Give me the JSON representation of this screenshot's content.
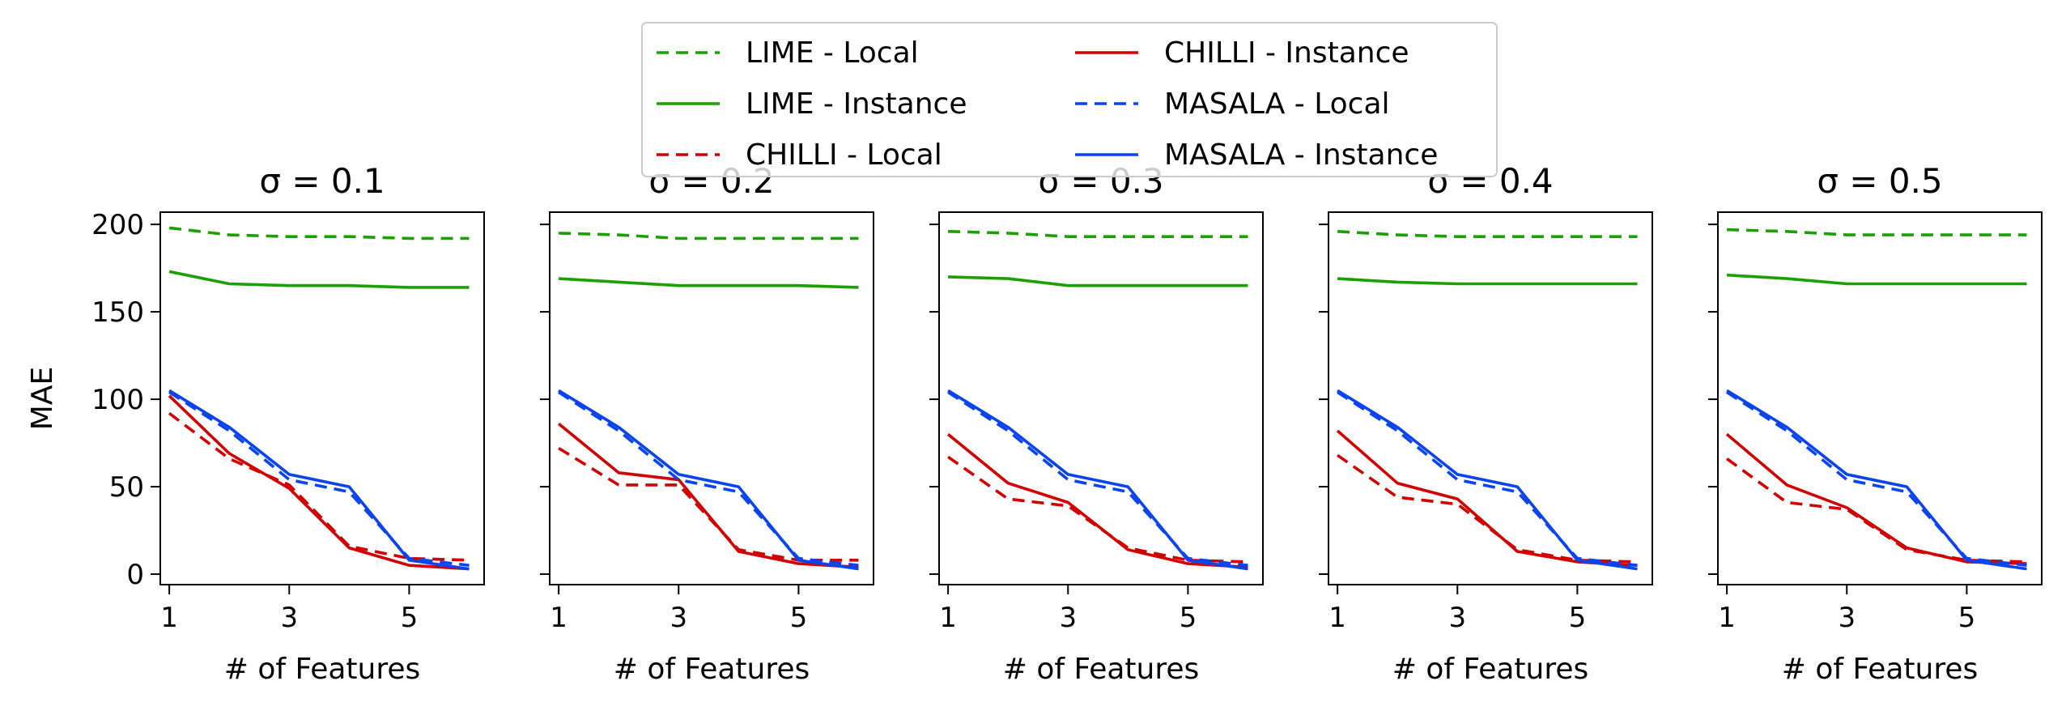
{
  "colors": {
    "lime": "#1aa000",
    "chilli": "#d10000",
    "masala": "#0a44ee",
    "axis": "#000000",
    "background": "#ffffff"
  },
  "legend": {
    "position": "top-center",
    "columns": 2,
    "entries": [
      {
        "label": "LIME - Local",
        "color": "#1aa000",
        "dash": "dashed"
      },
      {
        "label": "LIME - Instance",
        "color": "#1aa000",
        "dash": "solid"
      },
      {
        "label": "CHILLI - Local",
        "color": "#d10000",
        "dash": "dashed"
      },
      {
        "label": "CHILLI - Instance",
        "color": "#d10000",
        "dash": "solid"
      },
      {
        "label": "MASALA - Local",
        "color": "#0a44ee",
        "dash": "dashed"
      },
      {
        "label": "MASALA - Instance",
        "color": "#0a44ee",
        "dash": "solid"
      }
    ]
  },
  "chart_data": [
    {
      "type": "line",
      "title": "σ = 0.1",
      "xlabel": "# of Features",
      "ylabel": "MAE",
      "x": [
        1,
        2,
        3,
        4,
        5,
        6
      ],
      "xticks": [
        1,
        3,
        5
      ],
      "yticks": [
        0,
        50,
        100,
        150,
        200
      ],
      "xlim": [
        0.85,
        6.25
      ],
      "ylim": [
        -6,
        207
      ],
      "grid": false,
      "series": [
        {
          "name": "LIME - Local",
          "values": [
            198,
            194,
            193,
            193,
            192,
            192
          ]
        },
        {
          "name": "LIME - Instance",
          "values": [
            173,
            166,
            165,
            165,
            164,
            164
          ]
        },
        {
          "name": "CHILLI - Local",
          "values": [
            92,
            66,
            51,
            16,
            9,
            8
          ]
        },
        {
          "name": "CHILLI - Instance",
          "values": [
            102,
            69,
            49,
            15,
            5,
            3
          ]
        },
        {
          "name": "MASALA - Local",
          "values": [
            104,
            82,
            54,
            47,
            9,
            5
          ]
        },
        {
          "name": "MASALA - Instance",
          "values": [
            105,
            84,
            57,
            50,
            8,
            3
          ]
        }
      ]
    },
    {
      "type": "line",
      "title": "σ = 0.2",
      "xlabel": "# of Features",
      "ylabel": "",
      "x": [
        1,
        2,
        3,
        4,
        5,
        6
      ],
      "xticks": [
        1,
        3,
        5
      ],
      "yticks": [
        0,
        50,
        100,
        150,
        200
      ],
      "xlim": [
        0.85,
        6.25
      ],
      "ylim": [
        -6,
        207
      ],
      "grid": false,
      "series": [
        {
          "name": "LIME - Local",
          "values": [
            195,
            194,
            192,
            192,
            192,
            192
          ]
        },
        {
          "name": "LIME - Instance",
          "values": [
            169,
            167,
            165,
            165,
            165,
            164
          ]
        },
        {
          "name": "CHILLI - Local",
          "values": [
            72,
            51,
            51,
            14,
            8,
            8
          ]
        },
        {
          "name": "CHILLI - Instance",
          "values": [
            86,
            58,
            54,
            13,
            6,
            4
          ]
        },
        {
          "name": "MASALA - Local",
          "values": [
            104,
            82,
            54,
            47,
            9,
            5
          ]
        },
        {
          "name": "MASALA - Instance",
          "values": [
            105,
            84,
            57,
            50,
            8,
            3
          ]
        }
      ]
    },
    {
      "type": "line",
      "title": "σ = 0.3",
      "xlabel": "# of Features",
      "ylabel": "",
      "x": [
        1,
        2,
        3,
        4,
        5,
        6
      ],
      "xticks": [
        1,
        3,
        5
      ],
      "yticks": [
        0,
        50,
        100,
        150,
        200
      ],
      "xlim": [
        0.85,
        6.25
      ],
      "ylim": [
        -6,
        207
      ],
      "grid": false,
      "series": [
        {
          "name": "LIME - Local",
          "values": [
            196,
            195,
            193,
            193,
            193,
            193
          ]
        },
        {
          "name": "LIME - Instance",
          "values": [
            170,
            169,
            165,
            165,
            165,
            165
          ]
        },
        {
          "name": "CHILLI - Local",
          "values": [
            67,
            43,
            39,
            15,
            8,
            7
          ]
        },
        {
          "name": "CHILLI - Instance",
          "values": [
            80,
            52,
            41,
            14,
            6,
            4
          ]
        },
        {
          "name": "MASALA - Local",
          "values": [
            104,
            82,
            54,
            47,
            9,
            5
          ]
        },
        {
          "name": "MASALA - Instance",
          "values": [
            105,
            84,
            57,
            50,
            8,
            3
          ]
        }
      ]
    },
    {
      "type": "line",
      "title": "σ = 0.4",
      "xlabel": "# of Features",
      "ylabel": "",
      "x": [
        1,
        2,
        3,
        4,
        5,
        6
      ],
      "xticks": [
        1,
        3,
        5
      ],
      "yticks": [
        0,
        50,
        100,
        150,
        200
      ],
      "xlim": [
        0.85,
        6.25
      ],
      "ylim": [
        -6,
        207
      ],
      "grid": false,
      "series": [
        {
          "name": "LIME - Local",
          "values": [
            196,
            194,
            193,
            193,
            193,
            193
          ]
        },
        {
          "name": "LIME - Instance",
          "values": [
            169,
            167,
            166,
            166,
            166,
            166
          ]
        },
        {
          "name": "CHILLI - Local",
          "values": [
            68,
            44,
            40,
            14,
            8,
            7
          ]
        },
        {
          "name": "CHILLI - Instance",
          "values": [
            82,
            52,
            43,
            13,
            7,
            5
          ]
        },
        {
          "name": "MASALA - Local",
          "values": [
            104,
            82,
            54,
            47,
            9,
            5
          ]
        },
        {
          "name": "MASALA - Instance",
          "values": [
            105,
            84,
            57,
            50,
            8,
            3
          ]
        }
      ]
    },
    {
      "type": "line",
      "title": "σ = 0.5",
      "xlabel": "# of Features",
      "ylabel": "",
      "x": [
        1,
        2,
        3,
        4,
        5,
        6
      ],
      "xticks": [
        1,
        3,
        5
      ],
      "yticks": [
        0,
        50,
        100,
        150,
        200
      ],
      "xlim": [
        0.85,
        6.25
      ],
      "ylim": [
        -6,
        207
      ],
      "grid": false,
      "series": [
        {
          "name": "LIME - Local",
          "values": [
            197,
            196,
            194,
            194,
            194,
            194
          ]
        },
        {
          "name": "LIME - Instance",
          "values": [
            171,
            169,
            166,
            166,
            166,
            166
          ]
        },
        {
          "name": "CHILLI - Local",
          "values": [
            66,
            41,
            37,
            14,
            8,
            7
          ]
        },
        {
          "name": "CHILLI - Instance",
          "values": [
            80,
            51,
            38,
            15,
            7,
            6
          ]
        },
        {
          "name": "MASALA - Local",
          "values": [
            104,
            82,
            54,
            47,
            9,
            5
          ]
        },
        {
          "name": "MASALA - Instance",
          "values": [
            105,
            84,
            57,
            50,
            8,
            3
          ]
        }
      ]
    }
  ]
}
